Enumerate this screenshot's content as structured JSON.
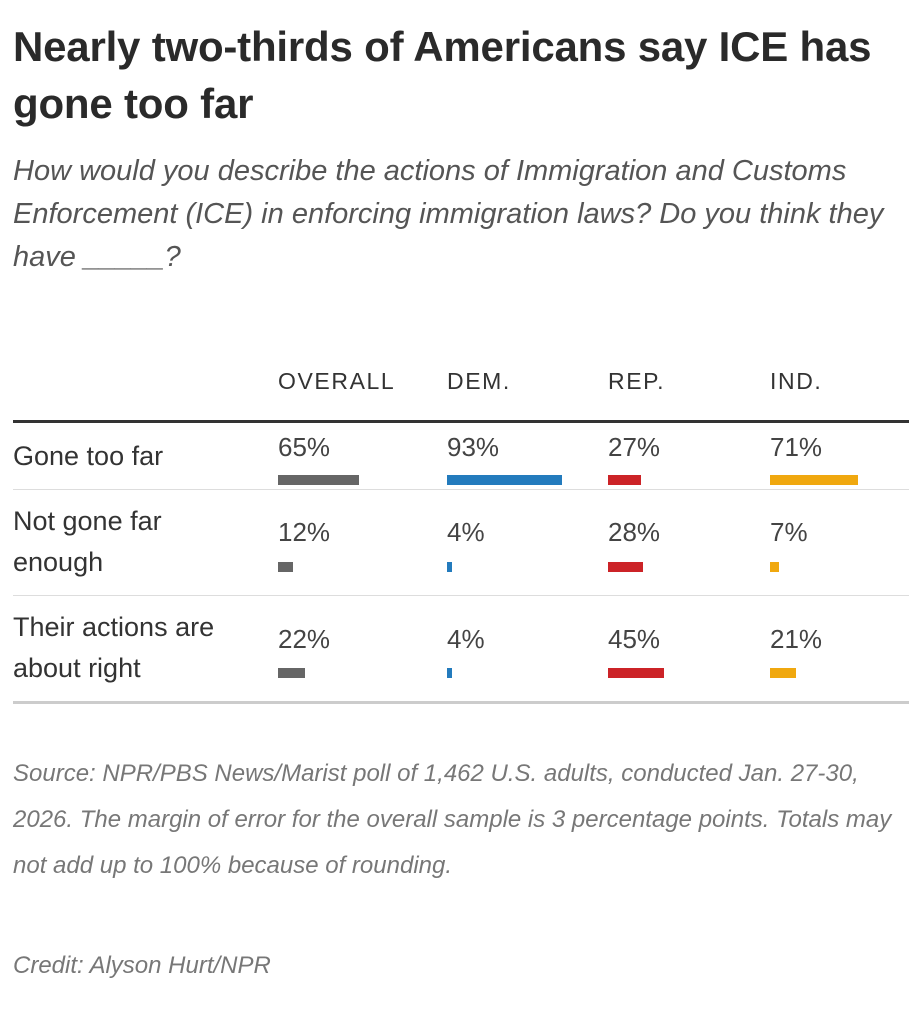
{
  "title": "Nearly two-thirds of Americans say ICE has gone too far",
  "subtitle": "How would you describe the actions of Immigration and Customs Enforcement (ICE) in enforcing immigration laws? Do you think they have _____?",
  "chart_data": {
    "type": "table",
    "columns": [
      {
        "label": "OVERALL",
        "color": "#666666"
      },
      {
        "label": "DEM.",
        "color": "#237bbd"
      },
      {
        "label": "REP.",
        "color": "#cc2327"
      },
      {
        "label": "IND.",
        "color": "#f0a80f"
      }
    ],
    "rows": [
      {
        "label": "Gone too far",
        "values": [
          65,
          93,
          27,
          71
        ],
        "display": [
          "65%",
          "93%",
          "27%",
          "71%"
        ]
      },
      {
        "label": "Not gone far enough",
        "values": [
          12,
          4,
          28,
          7
        ],
        "display": [
          "12%",
          "4%",
          "28%",
          "7%"
        ]
      },
      {
        "label": "Their actions are about right",
        "values": [
          22,
          4,
          45,
          21
        ],
        "display": [
          "22%",
          "4%",
          "45%",
          "21%"
        ]
      }
    ],
    "unit": "%"
  },
  "source": "Source: NPR/PBS News/Marist poll of 1,462 U.S. adults, conducted Jan. 27-30, 2026. The margin of error for the overall sample is 3 percentage points. Totals may not add up to 100% because of rounding.",
  "credit": "Credit: Alyson Hurt/NPR"
}
